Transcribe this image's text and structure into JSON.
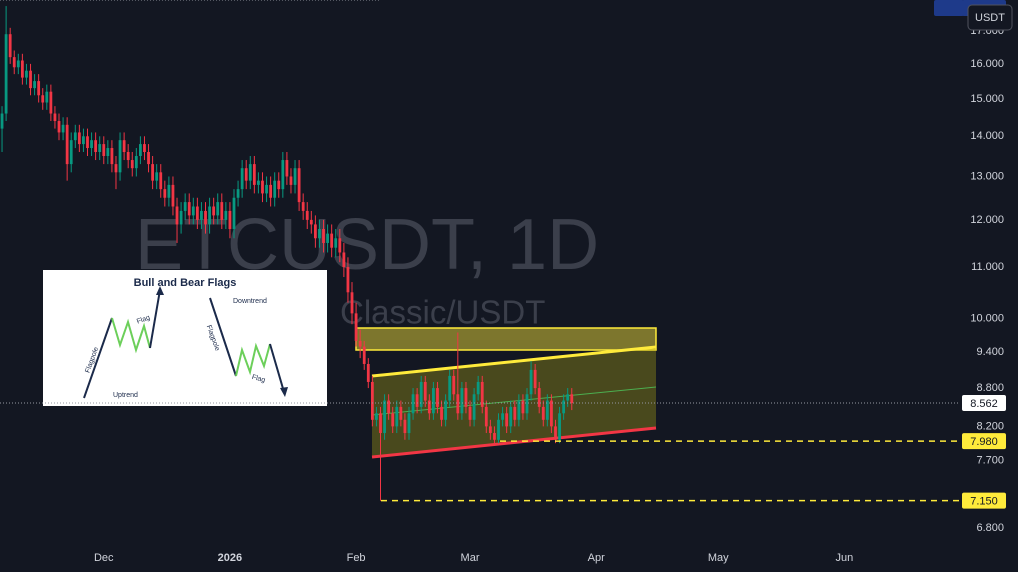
{
  "chart_data": {
    "type": "candlestick",
    "watermark": "ETCUSDT, 1D",
    "watermark_sub": "Classic/USDT",
    "currency": "USDT",
    "log_scale": true,
    "up_color": "#089981",
    "down_color": "#f23645",
    "ylim": [
      6.65,
      18.0
    ],
    "xlim": [
      -0.5,
      235.4
    ],
    "yticks": [
      {
        "value": 17,
        "label": "17.000"
      },
      {
        "value": 16,
        "label": "16.000"
      },
      {
        "value": 15,
        "label": "15.000"
      },
      {
        "value": 14,
        "label": "14.000"
      },
      {
        "value": 13,
        "label": "13.000"
      },
      {
        "value": 12,
        "label": "12.000"
      },
      {
        "value": 11,
        "label": "11.000"
      },
      {
        "value": 10,
        "label": "10.000"
      },
      {
        "value": 9.4,
        "label": "9.400"
      },
      {
        "value": 8.8,
        "label": "8.800"
      },
      {
        "value": 8.2,
        "label": "8.200"
      },
      {
        "value": 7.7,
        "label": "7.700"
      },
      {
        "value": 6.8,
        "label": "6.800"
      }
    ],
    "xticks": [
      {
        "value": 25,
        "label": "Dec"
      },
      {
        "value": 56,
        "label": "2026"
      },
      {
        "value": 87,
        "label": "Feb"
      },
      {
        "value": 115,
        "label": "Mar"
      },
      {
        "value": 146,
        "label": "Apr"
      },
      {
        "value": 176,
        "label": "May"
      },
      {
        "value": 207,
        "label": "Jun"
      }
    ],
    "last_price": {
      "value": 8.562,
      "label": "8.562"
    },
    "levels": [
      {
        "value": 7.98,
        "label": "7.980"
      },
      {
        "value": 7.15,
        "label": "7.150"
      }
    ],
    "low": [
      13.6,
      14.4,
      16.0,
      15.7,
      15.7,
      15.4,
      15.4,
      15.1,
      15.1,
      14.9,
      14.7,
      14.7,
      14.4,
      14.2,
      13.9,
      13.9,
      12.9,
      13.1,
      13.7,
      13.6,
      13.6,
      13.5,
      13.5,
      13.4,
      13.4,
      13.3,
      13.3,
      13.1,
      12.7,
      12.9,
      13.4,
      13.2,
      13.0,
      13.0,
      13.3,
      13.4,
      13.1,
      12.7,
      12.7,
      12.5,
      12.3,
      12.3,
      12.1,
      11.5,
      11.7,
      12.0,
      11.9,
      11.9,
      11.8,
      11.8,
      11.7,
      11.7,
      11.9,
      11.9,
      11.8,
      11.8,
      11.6,
      11.6,
      12.3,
      12.5,
      12.7,
      12.7,
      12.6,
      12.6,
      12.4,
      12.4,
      12.3,
      12.3,
      12.5,
      12.5,
      12.8,
      12.6,
      12.6,
      12.2,
      12.0,
      11.8,
      11.7,
      11.4,
      11.4,
      11.3,
      11.3,
      11.2,
      11.2,
      11.1,
      10.8,
      10.3,
      9.9,
      9.5,
      9.3,
      9.1,
      8.8,
      8.2,
      8.2,
      7.15,
      8.0,
      8.3,
      8.1,
      8.1,
      8.2,
      8.0,
      8.0,
      8.3,
      8.4,
      8.4,
      8.5,
      8.3,
      8.3,
      8.4,
      8.2,
      8.2,
      8.5,
      8.6,
      8.3,
      8.3,
      8.4,
      8.2,
      8.2,
      8.6,
      8.4,
      8.1,
      8.0,
      7.95,
      7.95,
      8.2,
      8.1,
      8.1,
      8.2,
      8.2,
      8.3,
      8.3,
      8.6,
      8.7,
      8.4,
      8.2,
      8.2,
      8.1,
      7.95,
      7.95,
      8.3,
      8.5,
      8.45
    ],
    "open": [
      14.2,
      14.6,
      16.9,
      16.2,
      15.9,
      16.1,
      15.6,
      15.8,
      15.3,
      15.5,
      15.1,
      14.9,
      15.2,
      14.6,
      14.4,
      14.1,
      14.3,
      13.3,
      13.9,
      14.1,
      13.8,
      14.0,
      13.7,
      13.9,
      13.6,
      13.8,
      13.5,
      13.7,
      13.3,
      13.1,
      13.9,
      13.6,
      13.4,
      13.2,
      13.5,
      13.8,
      13.6,
      13.3,
      12.9,
      13.1,
      12.7,
      12.5,
      12.8,
      12.3,
      11.9,
      12.2,
      12.4,
      12.1,
      12.3,
      12.0,
      12.2,
      11.9,
      12.3,
      12.1,
      12.4,
      12.0,
      12.2,
      11.8,
      12.5,
      12.7,
      13.2,
      12.9,
      13.3,
      12.8,
      12.9,
      12.6,
      12.8,
      12.5,
      12.9,
      12.7,
      13.4,
      13.0,
      12.8,
      13.2,
      12.4,
      12.2,
      12.0,
      11.9,
      11.6,
      11.8,
      11.5,
      11.7,
      11.4,
      11.6,
      11.3,
      11.0,
      10.5,
      10.1,
      9.6,
      9.5,
      9.2,
      8.9,
      8.3,
      8.4,
      8.1,
      8.6,
      8.4,
      8.2,
      8.5,
      8.3,
      8.1,
      8.4,
      8.7,
      8.5,
      8.9,
      8.6,
      8.4,
      8.8,
      8.5,
      8.3,
      8.6,
      9.0,
      8.7,
      8.4,
      8.8,
      8.5,
      8.3,
      8.7,
      8.9,
      8.5,
      8.2,
      8.1,
      8.0,
      8.3,
      8.4,
      8.2,
      8.5,
      8.3,
      8.6,
      8.4,
      8.7,
      9.1,
      8.8,
      8.5,
      8.3,
      8.6,
      8.2,
      8.0,
      8.4,
      8.6,
      8.7
    ],
    "high": [
      14.8,
      17.8,
      17.1,
      16.4,
      16.3,
      16.3,
      16.0,
      16.0,
      15.7,
      15.7,
      15.3,
      15.4,
      15.4,
      14.8,
      14.6,
      14.5,
      14.5,
      14.1,
      14.3,
      14.3,
      14.2,
      14.2,
      14.1,
      14.1,
      14.0,
      14.0,
      13.9,
      13.9,
      13.5,
      14.1,
      14.1,
      13.8,
      13.6,
      13.7,
      14.0,
      14.0,
      13.8,
      13.5,
      13.3,
      13.3,
      12.9,
      13.0,
      13.0,
      12.5,
      12.4,
      12.6,
      12.6,
      12.5,
      12.5,
      12.4,
      12.4,
      12.5,
      12.5,
      12.6,
      12.6,
      12.4,
      12.4,
      12.7,
      12.9,
      13.4,
      13.4,
      13.5,
      13.5,
      13.1,
      13.1,
      13.0,
      13.0,
      13.1,
      13.1,
      13.6,
      13.6,
      13.2,
      13.4,
      13.4,
      12.6,
      12.4,
      12.2,
      12.1,
      12.0,
      12.0,
      11.9,
      11.9,
      11.8,
      11.8,
      11.5,
      11.2,
      10.7,
      10.3,
      9.8,
      9.6,
      9.3,
      9.0,
      8.5,
      8.5,
      8.7,
      8.7,
      8.5,
      8.6,
      8.6,
      8.4,
      8.5,
      8.8,
      8.8,
      9.0,
      9.0,
      8.7,
      8.9,
      8.9,
      8.6,
      8.7,
      9.1,
      9.1,
      9.75,
      8.9,
      8.9,
      8.6,
      8.8,
      9.0,
      9.0,
      8.6,
      8.3,
      8.2,
      8.4,
      8.5,
      8.5,
      8.6,
      8.6,
      8.7,
      8.7,
      8.8,
      9.25,
      9.2,
      8.9,
      8.6,
      8.7,
      8.7,
      8.3,
      8.5,
      8.7,
      8.8,
      8.8
    ],
    "close": [
      14.6,
      16.9,
      16.2,
      15.9,
      16.1,
      15.6,
      15.8,
      15.3,
      15.5,
      15.1,
      14.9,
      15.2,
      14.6,
      14.4,
      14.1,
      14.3,
      13.3,
      13.9,
      14.1,
      13.8,
      14.0,
      13.7,
      13.9,
      13.6,
      13.8,
      13.5,
      13.7,
      13.3,
      13.1,
      13.9,
      13.6,
      13.4,
      13.2,
      13.5,
      13.8,
      13.6,
      13.3,
      12.9,
      13.1,
      12.7,
      12.5,
      12.8,
      12.3,
      11.9,
      12.2,
      12.4,
      12.1,
      12.3,
      12.0,
      12.2,
      11.9,
      12.3,
      12.1,
      12.4,
      12.0,
      12.2,
      11.8,
      12.5,
      12.7,
      13.2,
      12.9,
      13.3,
      12.8,
      12.9,
      12.6,
      12.8,
      12.5,
      12.9,
      12.7,
      13.4,
      13.0,
      12.8,
      13.2,
      12.4,
      12.2,
      12.0,
      11.9,
      11.6,
      11.8,
      11.5,
      11.7,
      11.4,
      11.6,
      11.3,
      11.0,
      10.5,
      10.1,
      9.6,
      9.5,
      9.2,
      8.9,
      8.3,
      8.4,
      8.1,
      8.6,
      8.4,
      8.2,
      8.5,
      8.3,
      8.1,
      8.4,
      8.7,
      8.5,
      8.9,
      8.6,
      8.4,
      8.8,
      8.5,
      8.3,
      8.6,
      9.0,
      8.7,
      8.4,
      8.8,
      8.5,
      8.3,
      8.7,
      8.9,
      8.5,
      8.2,
      8.1,
      8.0,
      8.3,
      8.4,
      8.2,
      8.5,
      8.3,
      8.6,
      8.4,
      8.7,
      9.1,
      8.8,
      8.5,
      8.3,
      8.6,
      8.2,
      8.0,
      8.4,
      8.6,
      8.7,
      8.56
    ]
  },
  "inset": {
    "title": "Bull and Bear Flags",
    "labels": [
      "Flag",
      "Flagpole",
      "Uptrend",
      "Downtrend",
      "Flagpole",
      "Flag"
    ]
  }
}
